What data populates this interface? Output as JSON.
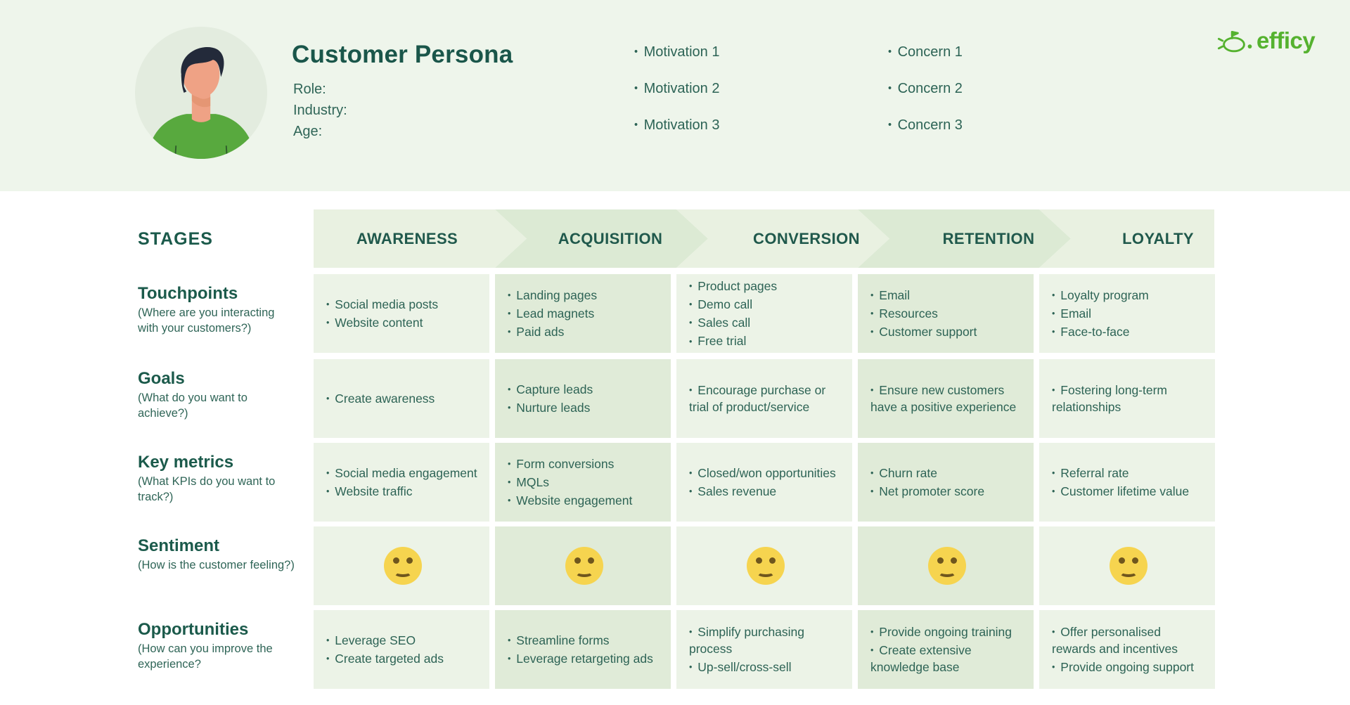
{
  "banner": {
    "title": "Customer Persona",
    "fields": [
      "Role:",
      "Industry:",
      "Age:"
    ],
    "motivations": [
      "Motivation 1",
      "Motivation 2",
      "Motivation 3"
    ],
    "concerns": [
      "Concern 1",
      "Concern 2",
      "Concern 3"
    ],
    "brand": "efficy"
  },
  "journey": {
    "stages_label": "STAGES",
    "stages": [
      "AWARENESS",
      "ACQUISITION",
      "CONVERSION",
      "RETENTION",
      "LOYALTY"
    ],
    "rows": [
      {
        "title": "Touchpoints",
        "subtitle": "(Where are you interacting with your customers?)",
        "cells": [
          [
            "Social media posts",
            "Website content"
          ],
          [
            "Landing pages",
            "Lead magnets",
            "Paid ads"
          ],
          [
            "Product pages",
            "Demo call",
            "Sales call",
            "Free trial"
          ],
          [
            "Email",
            "Resources",
            "Customer support"
          ],
          [
            "Loyalty program",
            "Email",
            "Face-to-face"
          ]
        ]
      },
      {
        "title": "Goals",
        "subtitle": "(What do you want to achieve?)",
        "cells": [
          [
            "Create awareness"
          ],
          [
            "Capture leads",
            "Nurture leads"
          ],
          [
            "Encourage purchase or trial of product/service"
          ],
          [
            "Ensure new customers have a positive experience"
          ],
          [
            "Fostering long-term relationships"
          ]
        ]
      },
      {
        "title": "Key metrics",
        "subtitle": "(What KPIs do you want to track?)",
        "cells": [
          [
            "Social media engagement",
            "Website traffic"
          ],
          [
            "Form conversions",
            "MQLs",
            "Website engagement"
          ],
          [
            "Closed/won opportunities",
            "Sales revenue"
          ],
          [
            "Churn rate",
            "Net promoter score"
          ],
          [
            "Referral rate",
            "Customer lifetime value"
          ]
        ]
      },
      {
        "title": "Sentiment",
        "subtitle": "(How is the customer feeling?)",
        "type": "emoji",
        "cells": [
          [
            "smiley"
          ],
          [
            "smiley"
          ],
          [
            "smiley"
          ],
          [
            "smiley"
          ],
          [
            "smiley"
          ]
        ]
      },
      {
        "title": "Opportunities",
        "subtitle": "(How can you improve the experience?",
        "cells": [
          [
            "Leverage SEO",
            "Create targeted ads"
          ],
          [
            "Streamline forms",
            "Leverage retargeting ads"
          ],
          [
            "Simplify purchasing process",
            "Up-sell/cross-sell"
          ],
          [
            "Provide ongoing training",
            "Create extensive knowledge base"
          ],
          [
            "Offer personalised rewards and incentives",
            "Provide ongoing support"
          ]
        ]
      }
    ]
  },
  "colors": {
    "brand_green": "#55b22f",
    "heading_green": "#1b5a4b",
    "body_green": "#2d6355",
    "banner_bg": "#eef5eb",
    "cell_light": "#ecf3e7",
    "cell_dark": "#e0ebd8",
    "band_light": "#e9f1e1",
    "band_dark": "#dcead4",
    "smiley_yellow": "#f6d44f"
  }
}
